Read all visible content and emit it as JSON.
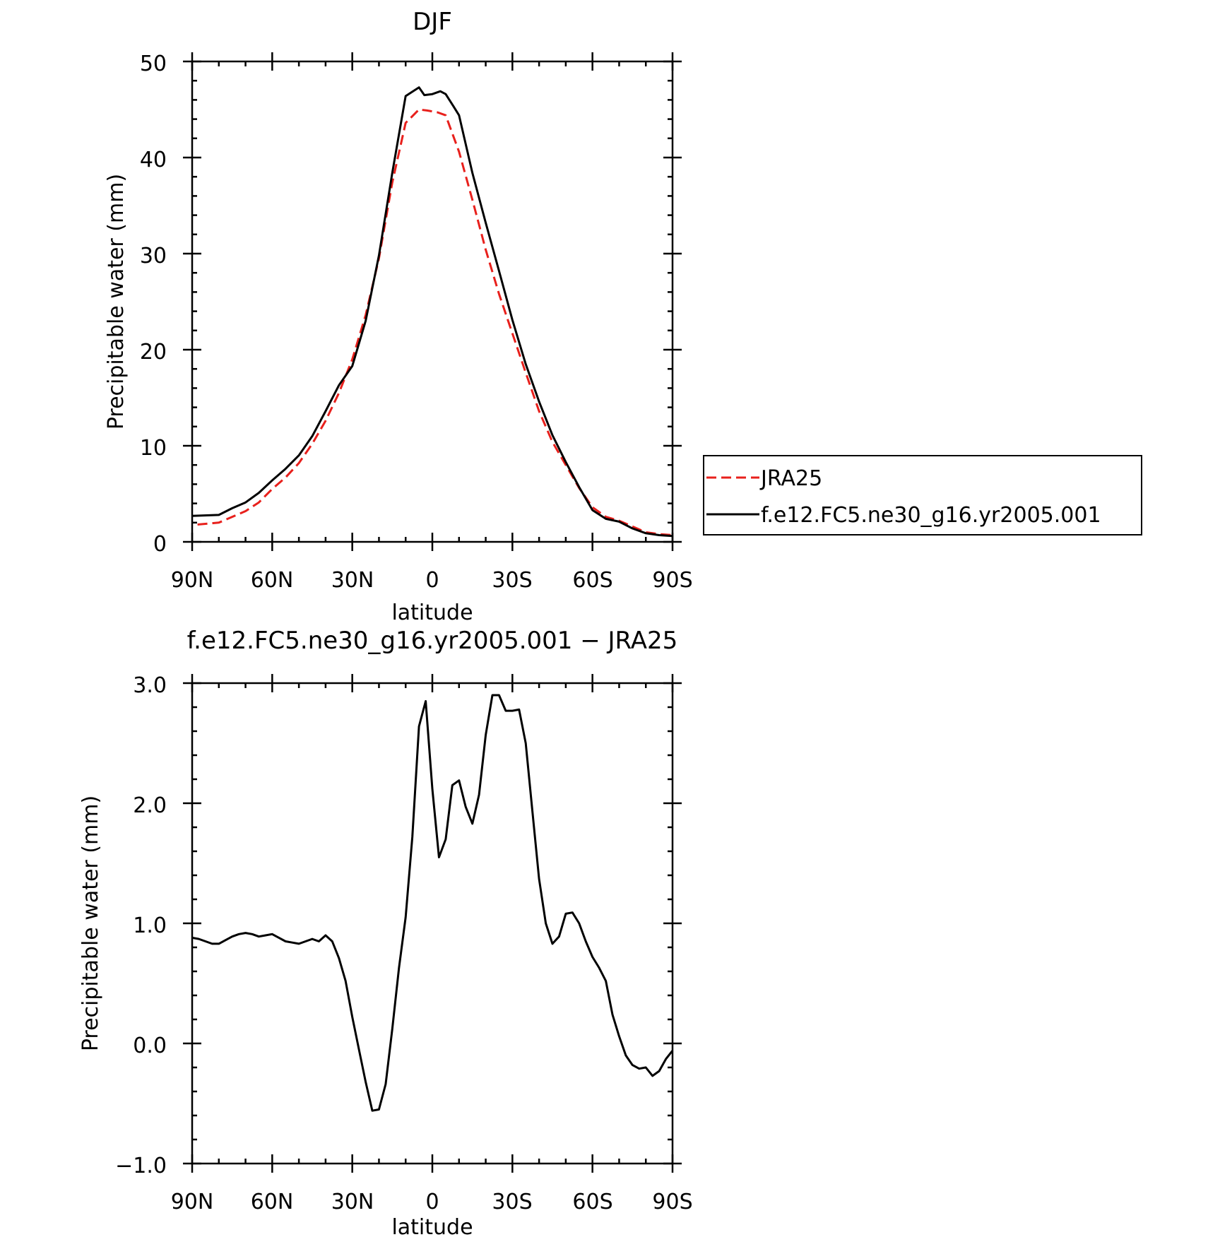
{
  "chart_data": [
    {
      "type": "line",
      "title": "DJF",
      "xlabel": "latitude",
      "ylabel": "Precipitable water (mm)",
      "x_axis": {
        "range": [
          90,
          -90
        ],
        "ticks": [
          90,
          60,
          30,
          0,
          -30,
          -60,
          -90
        ],
        "tick_labels": [
          "90N",
          "60N",
          "30N",
          "0",
          "30S",
          "60S",
          "90S"
        ]
      },
      "y_axis": {
        "range": [
          0,
          50
        ],
        "ticks": [
          0,
          10,
          20,
          30,
          40,
          50
        ],
        "tick_labels": [
          "0",
          "10",
          "20",
          "30",
          "40",
          "50"
        ]
      },
      "grid": false,
      "legend_position": "right, outside plot",
      "series": [
        {
          "name": "JRA25",
          "color": "#e8201c",
          "dash": "dashed",
          "x": [
            88,
            80,
            75,
            70,
            65,
            60,
            55,
            50,
            45,
            40,
            35,
            30,
            25,
            20,
            15,
            10,
            5,
            2,
            0,
            -2,
            -5,
            -10,
            -15,
            -20,
            -25,
            -30,
            -35,
            -40,
            -45,
            -50,
            -55,
            -60,
            -65,
            -70,
            -75,
            -80,
            -85,
            -90
          ],
          "y": [
            1.8,
            2.0,
            2.6,
            3.2,
            4.1,
            5.5,
            6.7,
            8.2,
            10.2,
            12.6,
            15.5,
            19.0,
            23.6,
            29.5,
            37.4,
            43.6,
            45.0,
            44.9,
            44.8,
            44.7,
            44.4,
            40.6,
            35.6,
            30.4,
            25.8,
            21.7,
            17.6,
            13.6,
            10.4,
            8.0,
            5.6,
            3.6,
            2.6,
            2.2,
            1.6,
            1.0,
            0.8,
            0.7
          ]
        },
        {
          "name": "f.e12.FC5.ne30_g16.yr2005.001",
          "color": "#000000",
          "dash": "solid",
          "x": [
            90,
            80,
            75,
            70,
            65,
            60,
            55,
            50,
            45,
            40,
            35,
            30,
            25,
            20,
            15,
            10,
            5,
            3,
            0,
            -3,
            -5,
            -8,
            -10,
            -15,
            -20,
            -25,
            -30,
            -35,
            -40,
            -45,
            -50,
            -55,
            -60,
            -65,
            -70,
            -75,
            -80,
            -85,
            -90
          ],
          "y": [
            2.7,
            2.8,
            3.5,
            4.1,
            5.1,
            6.4,
            7.6,
            9.0,
            11.0,
            13.6,
            16.3,
            18.3,
            23.0,
            29.8,
            38.4,
            46.4,
            47.3,
            46.5,
            46.6,
            46.9,
            46.6,
            45.3,
            44.4,
            38.4,
            33.2,
            28.2,
            23.1,
            18.5,
            14.6,
            11.1,
            8.3,
            5.7,
            3.3,
            2.4,
            2.1,
            1.4,
            0.9,
            0.7,
            0.6
          ]
        }
      ]
    },
    {
      "type": "line",
      "title": "f.e12.FC5.ne30_g16.yr2005.001 − JRA25",
      "xlabel": "latitude",
      "ylabel": "Precipitable water (mm)",
      "x_axis": {
        "range": [
          90,
          -90
        ],
        "ticks": [
          90,
          60,
          30,
          0,
          -30,
          -60,
          -90
        ],
        "tick_labels": [
          "90N",
          "60N",
          "30N",
          "0",
          "30S",
          "60S",
          "90S"
        ]
      },
      "y_axis": {
        "range": [
          -1.0,
          3.0
        ],
        "ticks": [
          -1.0,
          0.0,
          1.0,
          2.0,
          3.0
        ],
        "tick_labels": [
          "−1.0",
          "0.0",
          "1.0",
          "2.0",
          "3.0"
        ]
      },
      "grid": false,
      "series": [
        {
          "color": "#000000",
          "dash": "solid",
          "x": [
            90,
            87.5,
            85,
            82.5,
            80,
            77.5,
            75,
            72.5,
            70,
            67.5,
            65,
            62.5,
            60,
            57.5,
            55,
            52.5,
            50,
            47.5,
            45,
            42.5,
            40,
            37.5,
            35,
            32.5,
            30,
            27.5,
            25,
            22.5,
            20,
            17.5,
            15,
            12.5,
            10,
            7.5,
            5,
            2.5,
            0,
            -2.5,
            -5,
            -7.5,
            -10,
            -12.5,
            -15,
            -17.5,
            -20,
            -22.5,
            -25,
            -27.5,
            -30,
            -32.5,
            -35,
            -37.5,
            -40,
            -42.5,
            -45,
            -47.5,
            -50,
            -52.5,
            -55,
            -57.5,
            -60,
            -62.5,
            -65,
            -67.5,
            -70,
            -72.5,
            -75,
            -77.5,
            -80,
            -82.5,
            -85,
            -87.5,
            -90
          ],
          "y": [
            0.88,
            0.87,
            0.85,
            0.83,
            0.83,
            0.86,
            0.89,
            0.91,
            0.92,
            0.91,
            0.89,
            0.9,
            0.91,
            0.88,
            0.85,
            0.84,
            0.83,
            0.85,
            0.87,
            0.85,
            0.9,
            0.85,
            0.71,
            0.52,
            0.22,
            -0.05,
            -0.32,
            -0.56,
            -0.55,
            -0.34,
            0.12,
            0.63,
            1.05,
            1.72,
            2.64,
            2.85,
            2.12,
            1.55,
            1.7,
            2.15,
            2.19,
            1.97,
            1.83,
            2.07,
            2.57,
            2.9,
            2.9,
            2.77,
            2.77,
            2.78,
            2.5,
            1.93,
            1.37,
            1.0,
            0.83,
            0.89,
            1.08,
            1.09,
            1.0,
            0.85,
            0.72,
            0.63,
            0.52,
            0.24,
            0.06,
            -0.1,
            -0.18,
            -0.21,
            -0.2,
            -0.27,
            -0.23,
            -0.13,
            -0.06
          ]
        }
      ]
    }
  ]
}
